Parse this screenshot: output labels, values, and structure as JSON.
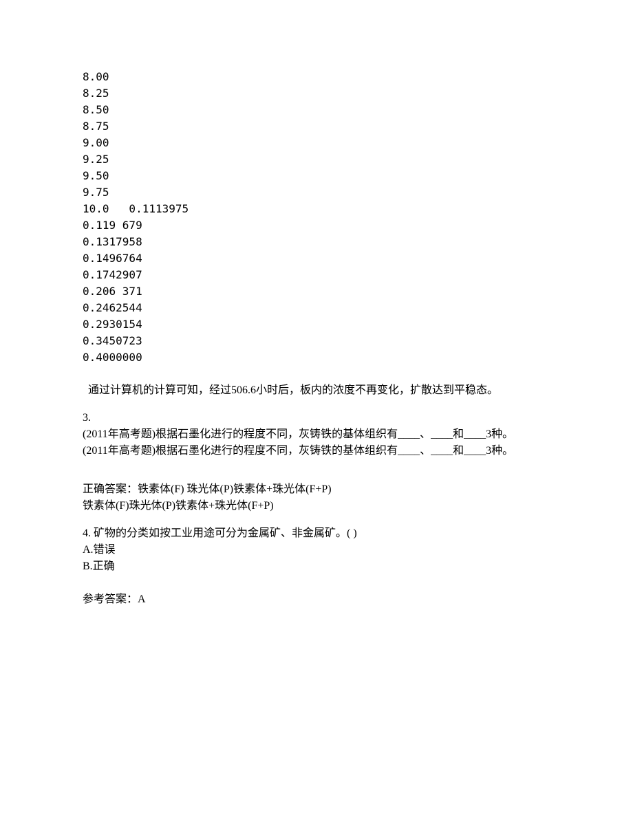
{
  "data_values": [
    "8.00",
    "8.25",
    "8.50",
    "8.75",
    "9.00",
    "9.25",
    "9.50",
    "9.75",
    "10.0   0.1113975",
    "0.119 679",
    "0.1317958",
    "0.1496764",
    "0.1742907",
    "0.206 371",
    "0.2462544",
    "0.2930154",
    "0.3450723",
    "0.4000000"
  ],
  "conclusion": "  通过计算机的计算可知，经过506.6小时后，板内的浓度不再变化，扩散达到平稳态。",
  "q3": {
    "number": "3.",
    "line1": "(2011年高考题)根据石墨化进行的程度不同，灰铸铁的基体组织有____、____和____3种。",
    "line2": "(2011年高考题)根据石墨化进行的程度不同，灰铸铁的基体组织有____、____和____3种。"
  },
  "q3_answer": {
    "line1": "正确答案：铁素体(F)  珠光体(P)铁素体+珠光体(F+P)",
    "line2": "铁素体(F)珠光体(P)铁素体+珠光体(F+P)"
  },
  "q4": {
    "text": "4. 矿物的分类如按工业用途可分为金属矿、非金属矿。(  )",
    "option_a": "A.错误",
    "option_b": "B.正确"
  },
  "q4_answer": "参考答案：A"
}
